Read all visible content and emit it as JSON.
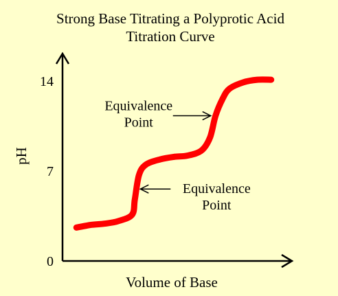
{
  "chart_data": {
    "type": "line",
    "title_line1": "Strong Base Titrating a Polyprotic Acid",
    "title_line2": "Titration Curve",
    "xlabel": "Volume of Base",
    "ylabel": "pH",
    "ylim": [
      0,
      14
    ],
    "yticks": [
      "0",
      "7",
      "14"
    ],
    "grid": false,
    "series": [
      {
        "color": "#ff0000",
        "x": [
          1.0,
          2.0,
          3.0,
          4.0,
          5.0,
          5.2,
          5.5,
          6.0,
          7.0,
          8.0,
          9.0,
          10.0,
          10.6,
          11.0,
          11.5,
          12.0,
          13.0,
          14.0,
          15.0
        ],
        "y": [
          2.6,
          2.8,
          2.9,
          3.1,
          3.6,
          4.8,
          6.7,
          7.5,
          7.9,
          8.1,
          8.2,
          8.6,
          9.6,
          11.3,
          12.6,
          13.4,
          13.9,
          14.1,
          14.1
        ]
      }
    ],
    "annotations": [
      {
        "line1": "Equivalence",
        "line2": "Point",
        "x": 11.0,
        "y": 11.3,
        "side": "left"
      },
      {
        "line1": "Equivalence",
        "line2": "Point",
        "x": 5.2,
        "y": 5.6,
        "side": "right"
      }
    ]
  }
}
